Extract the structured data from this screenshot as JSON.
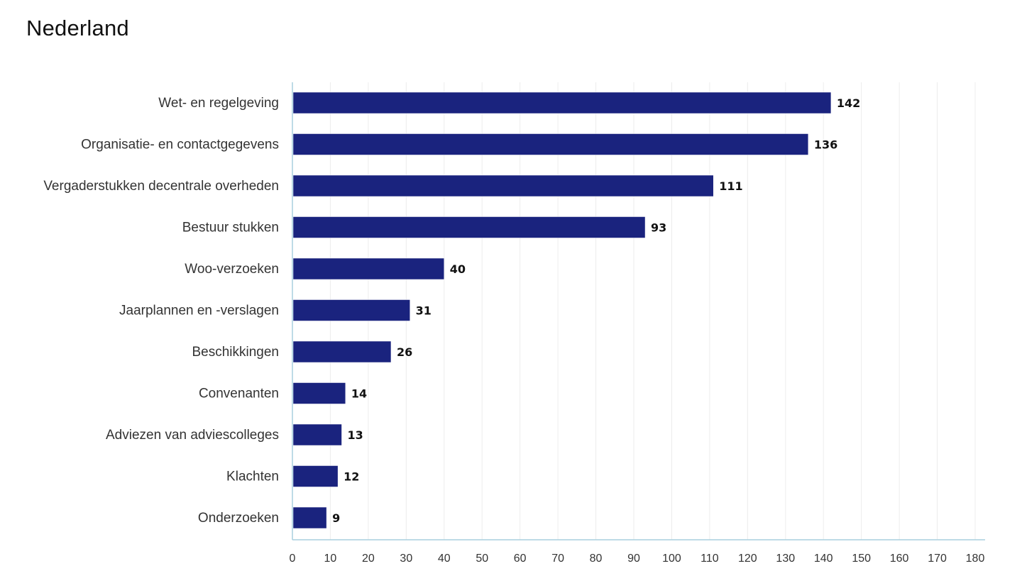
{
  "title": "Nederland",
  "chart_data": {
    "type": "bar",
    "orientation": "horizontal",
    "title": "Nederland",
    "categories": [
      "Wet- en regelgeving",
      "Organisatie- en contactgegevens",
      "Vergaderstukken decentrale overheden",
      "Bestuur stukken",
      "Woo-verzoeken",
      "Jaarplannen en -verslagen",
      "Beschikkingen",
      "Convenanten",
      "Adviezen van adviescolleges",
      "Klachten",
      "Onderzoeken"
    ],
    "values": [
      142,
      136,
      111,
      93,
      40,
      31,
      26,
      14,
      13,
      12,
      9
    ],
    "xlim": [
      0,
      180
    ],
    "xticks": [
      0,
      10,
      20,
      30,
      40,
      50,
      60,
      70,
      80,
      90,
      100,
      110,
      120,
      130,
      140,
      150,
      160,
      170,
      180
    ],
    "data_labels": true,
    "grid": true,
    "bar_color": "#1a237e",
    "xlabel": "",
    "ylabel": ""
  }
}
